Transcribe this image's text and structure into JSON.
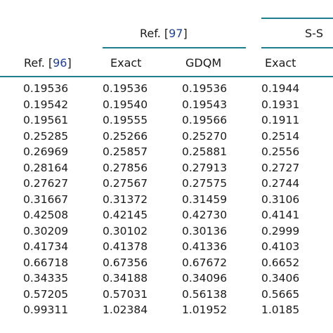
{
  "colors": {
    "rule": "#1e7f8e",
    "ref_link": "#1f3f9f",
    "text": "#1a1a1a"
  },
  "header": {
    "group1": {
      "prefix": "Ref. [",
      "ref": "97",
      "suffix": "]"
    },
    "group2": "S-S",
    "col1": {
      "prefix": "Ref. [",
      "ref": "96",
      "suffix": "]"
    },
    "col2": "Exact",
    "col3": "GDQM",
    "col4": "Exact"
  },
  "rows": [
    [
      "0.19536",
      "0.19536",
      "0.19536",
      "0.1944"
    ],
    [
      "0.19542",
      "0.19540",
      "0.19543",
      "0.1931"
    ],
    [
      "0.19561",
      "0.19555",
      "0.19566",
      "0.1911"
    ],
    [
      "0.25285",
      "0.25266",
      "0.25270",
      "0.2514"
    ],
    [
      "0.26969",
      "0.25857",
      "0.25881",
      "0.2556"
    ],
    [
      "0.28164",
      "0.27856",
      "0.27913",
      "0.2727"
    ],
    [
      "0.27627",
      "0.27567",
      "0.27575",
      "0.2744"
    ],
    [
      "0.31667",
      "0.31372",
      "0.31459",
      "0.3106"
    ],
    [
      "0.42508",
      "0.42145",
      "0.42730",
      "0.4141"
    ],
    [
      "0.30209",
      "0.30102",
      "0.30136",
      "0.2999"
    ],
    [
      "0.41734",
      "0.41378",
      "0.41336",
      "0.4103"
    ],
    [
      "0.66718",
      "0.67356",
      "0.67672",
      "0.6652"
    ],
    [
      "0.34335",
      "0.34188",
      "0.34096",
      "0.3406"
    ],
    [
      "0.57205",
      "0.57031",
      "0.56138",
      "0.5665"
    ],
    [
      "0.99311",
      "1.02384",
      "1.01952",
      "1.0185"
    ]
  ]
}
